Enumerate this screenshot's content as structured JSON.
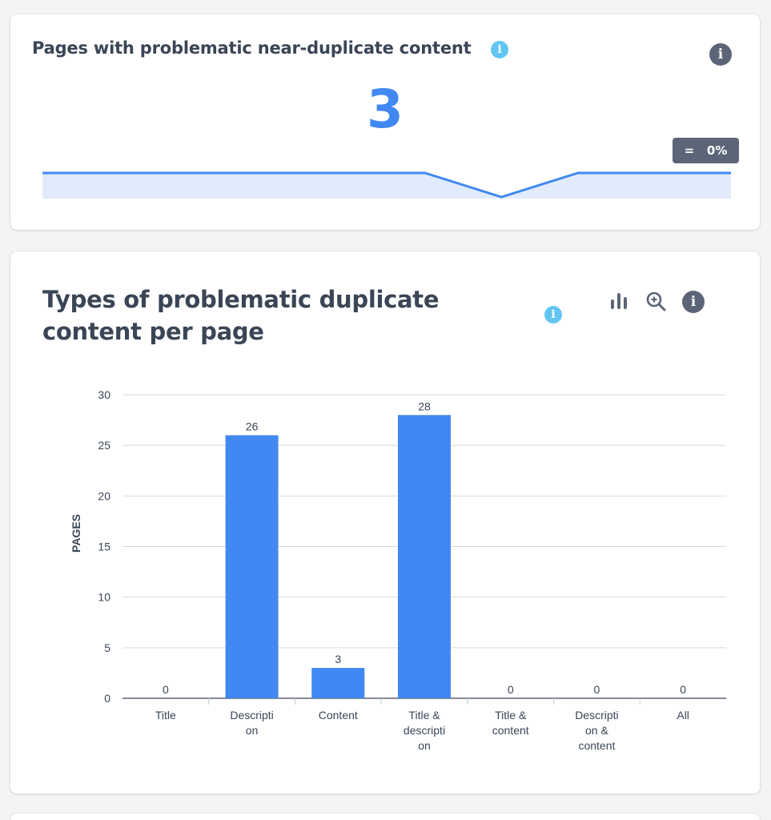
{
  "summary_card": {
    "title": "Pages with problematic near-duplicate content",
    "info_icon": "info-icon",
    "value": "3",
    "change_badge": "=   0%",
    "sparkline_values": [
      3,
      3,
      3,
      3,
      3,
      3,
      2,
      3,
      3,
      3
    ]
  },
  "chart_card": {
    "title": "Types of problematic duplicate content per page",
    "toolbar": {
      "chart_icon": "bar-chart-icon",
      "zoom_icon": "zoom-in-icon",
      "info_icon": "info-icon"
    }
  },
  "colors": {
    "bar": "#4188f2",
    "sparkline_line": "#4188f2",
    "sparkline_fill": "#e1ebfc",
    "badge": "#5b6577",
    "info_light": "#63c6f2"
  },
  "chart_data": {
    "type": "bar",
    "categories": [
      [
        "Title"
      ],
      [
        "Descripti",
        "on"
      ],
      [
        "Content"
      ],
      [
        "Title &",
        "descripti",
        "on"
      ],
      [
        "Title &",
        "content"
      ],
      [
        "Descripti",
        "on &",
        "content"
      ],
      [
        "All"
      ]
    ],
    "values": [
      0,
      26,
      3,
      28,
      0,
      0,
      0
    ],
    "ylabel": "PAGES",
    "ylim": [
      0,
      30
    ],
    "yticks": [
      0,
      5,
      10,
      15,
      20,
      25,
      30
    ],
    "grid": true,
    "data_labels": true
  }
}
